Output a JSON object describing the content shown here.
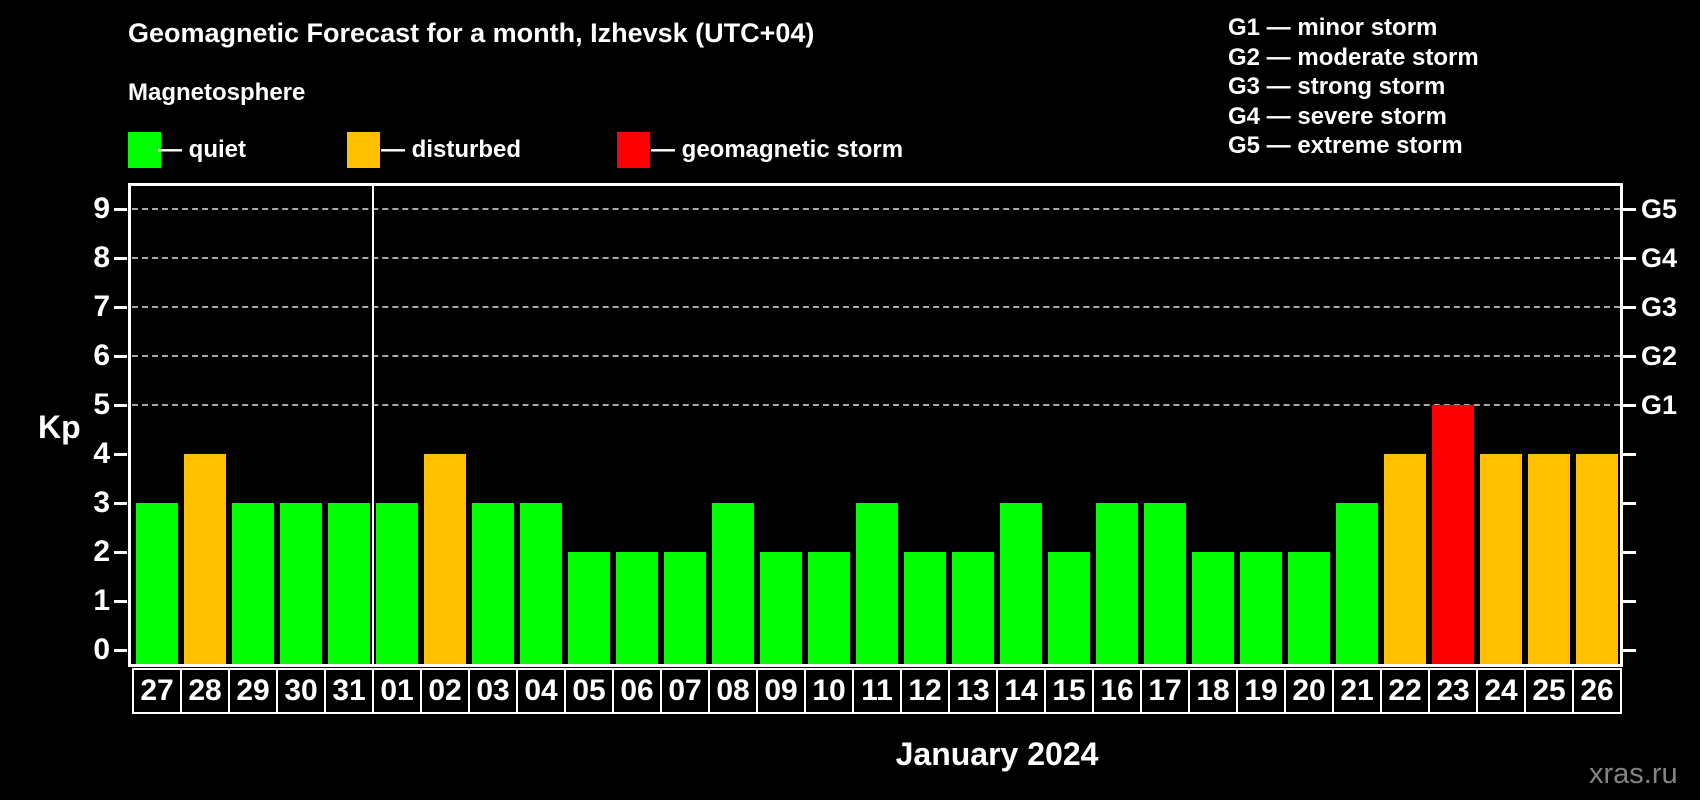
{
  "header": {
    "title": "Geomagnetic Forecast for a month, Izhevsk (UTC+04)",
    "subtitle": "Magnetosphere"
  },
  "legend": {
    "colors": {
      "quiet": "#00ff00",
      "disturbed": "#ffc000",
      "storm": "#ff0000"
    },
    "items": [
      {
        "status": "quiet",
        "label": "— quiet"
      },
      {
        "status": "disturbed",
        "label": "— disturbed"
      },
      {
        "status": "storm",
        "label": "— geomagnetic storm"
      }
    ]
  },
  "g_legend": {
    "lines": [
      "G1 — minor storm",
      "G2 — moderate storm",
      "G3 — strong storm",
      "G4 — severe storm",
      "G5 — extreme storm"
    ]
  },
  "chart_data": {
    "type": "bar",
    "title": "Geomagnetic Forecast for a month, Izhevsk (UTC+04)",
    "ylabel": "Kp",
    "xlabel": "January 2024",
    "ylim": [
      0,
      9
    ],
    "y_ticks": [
      0,
      1,
      2,
      3,
      4,
      5,
      6,
      7,
      8,
      9
    ],
    "gridlines_at_kp": [
      5,
      6,
      7,
      8,
      9
    ],
    "right_axis_ticks": [
      {
        "kp": 5,
        "label": "G1"
      },
      {
        "kp": 6,
        "label": "G2"
      },
      {
        "kp": 7,
        "label": "G3"
      },
      {
        "kp": 8,
        "label": "G4"
      },
      {
        "kp": 9,
        "label": "G5"
      }
    ],
    "month_divider_after_index": 4,
    "days": [
      {
        "day": "27",
        "kp": 3,
        "status": "quiet"
      },
      {
        "day": "28",
        "kp": 4,
        "status": "disturbed"
      },
      {
        "day": "29",
        "kp": 3,
        "status": "quiet"
      },
      {
        "day": "30",
        "kp": 3,
        "status": "quiet"
      },
      {
        "day": "31",
        "kp": 3,
        "status": "quiet"
      },
      {
        "day": "01",
        "kp": 3,
        "status": "quiet"
      },
      {
        "day": "02",
        "kp": 4,
        "status": "disturbed"
      },
      {
        "day": "03",
        "kp": 3,
        "status": "quiet"
      },
      {
        "day": "04",
        "kp": 3,
        "status": "quiet"
      },
      {
        "day": "05",
        "kp": 2,
        "status": "quiet"
      },
      {
        "day": "06",
        "kp": 2,
        "status": "quiet"
      },
      {
        "day": "07",
        "kp": 2,
        "status": "quiet"
      },
      {
        "day": "08",
        "kp": 3,
        "status": "quiet"
      },
      {
        "day": "09",
        "kp": 2,
        "status": "quiet"
      },
      {
        "day": "10",
        "kp": 2,
        "status": "quiet"
      },
      {
        "day": "11",
        "kp": 3,
        "status": "quiet"
      },
      {
        "day": "12",
        "kp": 2,
        "status": "quiet"
      },
      {
        "day": "13",
        "kp": 2,
        "status": "quiet"
      },
      {
        "day": "14",
        "kp": 3,
        "status": "quiet"
      },
      {
        "day": "15",
        "kp": 2,
        "status": "quiet"
      },
      {
        "day": "16",
        "kp": 3,
        "status": "quiet"
      },
      {
        "day": "17",
        "kp": 3,
        "status": "quiet"
      },
      {
        "day": "18",
        "kp": 2,
        "status": "quiet"
      },
      {
        "day": "19",
        "kp": 2,
        "status": "quiet"
      },
      {
        "day": "20",
        "kp": 2,
        "status": "quiet"
      },
      {
        "day": "21",
        "kp": 3,
        "status": "quiet"
      },
      {
        "day": "22",
        "kp": 4,
        "status": "disturbed"
      },
      {
        "day": "23",
        "kp": 5,
        "status": "storm"
      },
      {
        "day": "24",
        "kp": 4,
        "status": "disturbed"
      },
      {
        "day": "25",
        "kp": 4,
        "status": "disturbed"
      },
      {
        "day": "26",
        "kp": 4,
        "status": "disturbed"
      }
    ]
  },
  "footer": {
    "xlabel": "January 2024",
    "watermark": "xras.ru"
  }
}
